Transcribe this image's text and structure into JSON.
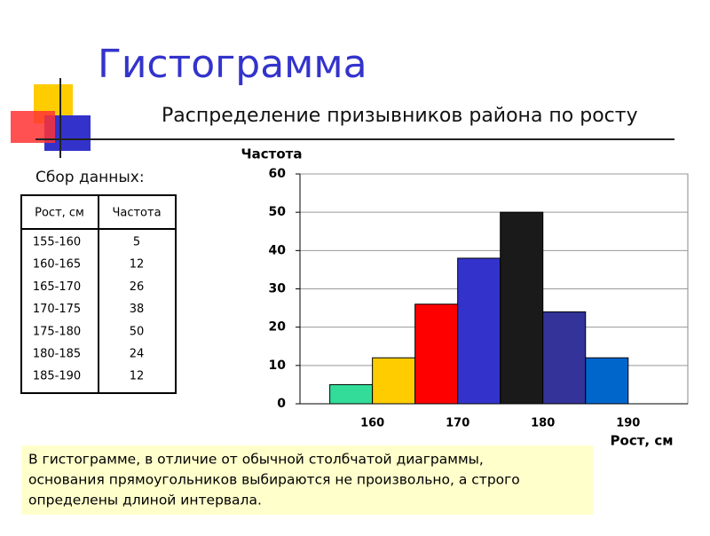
{
  "title": "Гистограмма",
  "subtitle": "Распределение призывников района по росту",
  "data_label": "Сбор данных:",
  "table": {
    "headers": [
      "Рост, см",
      "Частота"
    ],
    "rows": [
      [
        "155-160",
        "5"
      ],
      [
        "160-165",
        "12"
      ],
      [
        "165-170",
        "26"
      ],
      [
        "170-175",
        "38"
      ],
      [
        "175-180",
        "50"
      ],
      [
        "180-185",
        "24"
      ],
      [
        "185-190",
        "12"
      ]
    ]
  },
  "note": [
    "В гистограмме, в отличие от обычной столбчатой диаграммы,",
    "основания прямоугольников выбираются не произвольно, а строго",
    "определены длиной интервала."
  ],
  "chart_data": {
    "type": "histogram",
    "bins": [
      155,
      160,
      165,
      170,
      175,
      180,
      185,
      190
    ],
    "values": [
      5,
      12,
      26,
      38,
      50,
      24,
      12
    ],
    "colors": [
      "#33dd99",
      "#ffcc00",
      "#ff0000",
      "#3333cc",
      "#1a1a1a",
      "#333399",
      "#0066cc"
    ],
    "xlim": [
      151.5,
      197
    ],
    "xticks": [
      160,
      170,
      180,
      190
    ],
    "ylim": [
      0,
      60
    ],
    "yticks": [
      0,
      10,
      20,
      30,
      40,
      50,
      60
    ],
    "x_label": "Рост, см",
    "y_label": "Частота",
    "grid": true
  }
}
